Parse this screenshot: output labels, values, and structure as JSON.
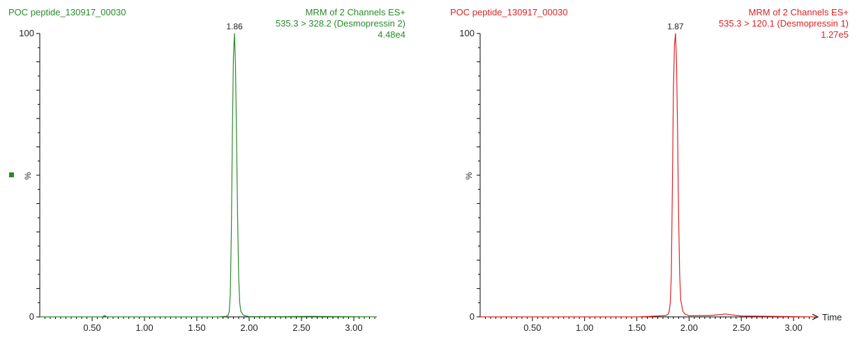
{
  "chart_data": [
    {
      "type": "line",
      "color": "#2a8a2a",
      "header_left": "POC peptide_130917_00030",
      "header_right": [
        "MRM of 2 Channels ES+",
        "535.3 > 328.2 (Desmopressin 2)",
        "4.48e4"
      ],
      "ylabel": "%",
      "xlim": [
        0,
        3.22
      ],
      "ylim": [
        0,
        100
      ],
      "y_ticks": [
        "0",
        "100"
      ],
      "x_ticks": [
        "0.50",
        "1.00",
        "1.50",
        "2.00",
        "2.50",
        "3.00"
      ],
      "xlabel": "",
      "peak_label": "1.86",
      "x": [
        0.0,
        0.3,
        0.6,
        0.62,
        0.64,
        0.9,
        1.2,
        1.5,
        1.7,
        1.78,
        1.8,
        1.81,
        1.82,
        1.83,
        1.84,
        1.85,
        1.86,
        1.87,
        1.88,
        1.89,
        1.9,
        1.91,
        1.92,
        1.94,
        1.96,
        2.0,
        2.3,
        2.6,
        2.9,
        3.22
      ],
      "y": [
        0,
        0,
        0,
        0.5,
        0,
        0,
        0,
        0,
        0,
        0.2,
        0.6,
        2,
        8,
        30,
        65,
        92,
        100,
        88,
        62,
        35,
        14,
        5,
        2,
        0.8,
        0.4,
        0.1,
        0.1,
        0.2,
        0.1,
        0
      ]
    },
    {
      "type": "line",
      "color": "#dd2222",
      "header_left": "POC peptide_130917_00030",
      "header_right": [
        "MRM of 2 Channels ES+",
        "535.3 > 120.1 (Desmopressin 1)",
        "1.27e5"
      ],
      "ylabel": "%",
      "xlim": [
        0,
        3.22
      ],
      "ylim": [
        0,
        100
      ],
      "y_ticks": [
        "0",
        "100"
      ],
      "x_ticks": [
        "0.50",
        "1.00",
        "1.50",
        "2.00",
        "2.50",
        "3.00"
      ],
      "xlabel": "Time",
      "peak_label": "1.87",
      "x": [
        0.0,
        0.3,
        0.6,
        0.9,
        1.2,
        1.5,
        1.7,
        1.78,
        1.8,
        1.81,
        1.82,
        1.83,
        1.84,
        1.85,
        1.86,
        1.87,
        1.88,
        1.89,
        1.9,
        1.91,
        1.92,
        1.94,
        1.96,
        2.0,
        2.2,
        2.35,
        2.5,
        2.8,
        3.0,
        3.22
      ],
      "y": [
        0,
        0,
        0,
        0,
        0,
        0,
        0.3,
        0.5,
        1,
        2,
        5,
        15,
        45,
        80,
        96,
        100,
        90,
        65,
        35,
        15,
        6,
        2,
        1,
        0.4,
        0.5,
        1,
        0.3,
        0.2,
        0.1,
        0
      ]
    }
  ]
}
